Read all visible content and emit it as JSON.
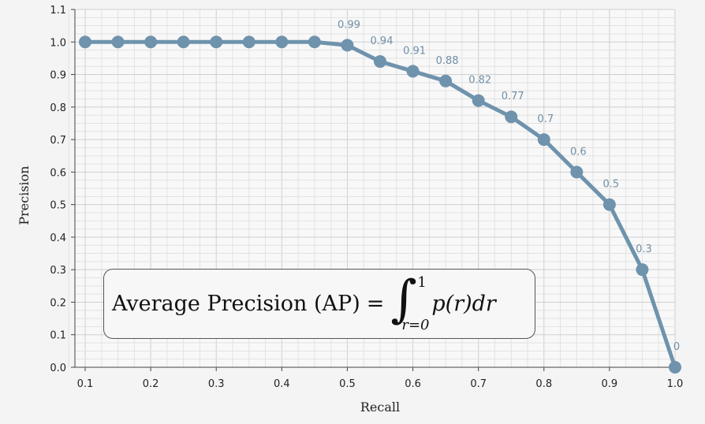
{
  "chart_data": {
    "type": "line",
    "title": "",
    "xlabel": "Recall",
    "ylabel": "Precision",
    "xlim": [
      0.1,
      1.0
    ],
    "ylim": [
      0.0,
      1.1
    ],
    "x_ticks": [
      "0.1",
      "0.2",
      "0.3",
      "0.4",
      "0.5",
      "0.6",
      "0.7",
      "0.8",
      "0.9",
      "1.0"
    ],
    "y_ticks": [
      "0.0",
      "0.1",
      "0.2",
      "0.3",
      "0.4",
      "0.5",
      "0.6",
      "0.7",
      "0.8",
      "0.9",
      "1.0",
      "1.1"
    ],
    "grid": true,
    "series": [
      {
        "x": [
          0.1,
          0.15,
          0.2,
          0.25,
          0.3,
          0.35,
          0.4,
          0.45,
          0.5,
          0.55,
          0.6,
          0.65,
          0.7,
          0.75,
          0.8,
          0.85,
          0.9,
          0.95,
          1.0
        ],
        "y": [
          1.0,
          1.0,
          1.0,
          1.0,
          1.0,
          1.0,
          1.0,
          1.0,
          0.99,
          0.94,
          0.91,
          0.88,
          0.82,
          0.77,
          0.7,
          0.6,
          0.5,
          0.3,
          0.0
        ],
        "color": "#6f93ad"
      }
    ],
    "data_labels": [
      {
        "x": 0.5,
        "y": 0.99,
        "text": "0.99"
      },
      {
        "x": 0.55,
        "y": 0.94,
        "text": "0.94"
      },
      {
        "x": 0.6,
        "y": 0.91,
        "text": "0.91"
      },
      {
        "x": 0.65,
        "y": 0.88,
        "text": "0.88"
      },
      {
        "x": 0.7,
        "y": 0.82,
        "text": "0.82"
      },
      {
        "x": 0.75,
        "y": 0.77,
        "text": "0.77"
      },
      {
        "x": 0.8,
        "y": 0.7,
        "text": "0.7"
      },
      {
        "x": 0.85,
        "y": 0.6,
        "text": "0.6"
      },
      {
        "x": 0.9,
        "y": 0.5,
        "text": "0.5"
      },
      {
        "x": 0.95,
        "y": 0.3,
        "text": "0.3"
      },
      {
        "x": 1.0,
        "y": 0.0,
        "text": "0"
      }
    ],
    "annotation": {
      "left_text": "Average Precision (AP)",
      "equals": "=",
      "integral_upper": "1",
      "integral_lower": "r=0",
      "integrand": "p(r)dr"
    }
  }
}
